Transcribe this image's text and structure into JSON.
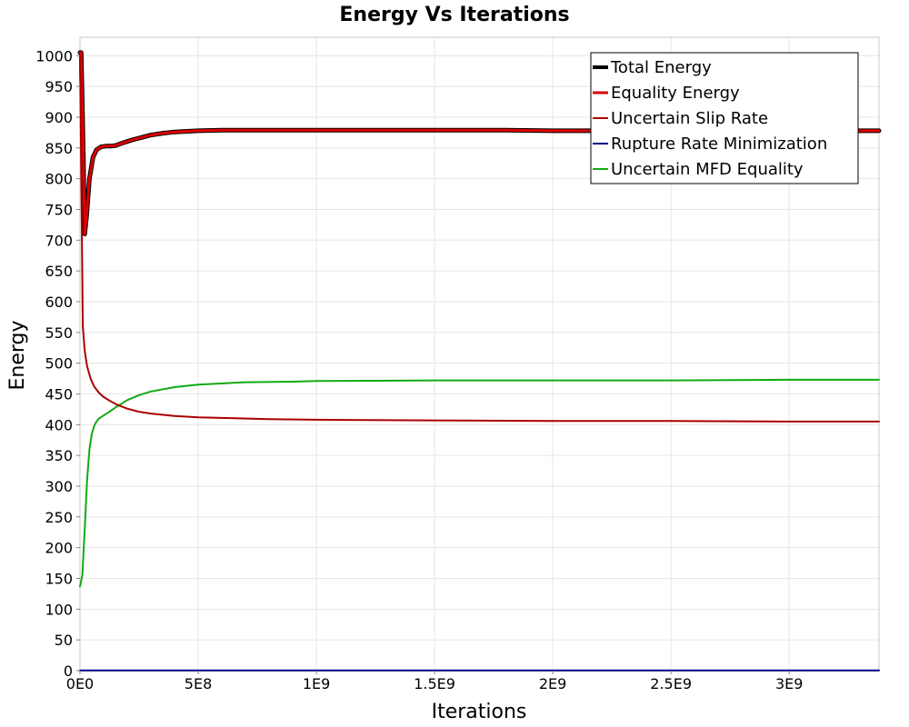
{
  "chart_data": {
    "type": "line",
    "title": "Energy Vs Iterations",
    "xlabel": "Iterations",
    "ylabel": "Energy",
    "xlim": [
      0,
      3380000000
    ],
    "ylim": [
      0,
      1030
    ],
    "x_ticks": [
      0,
      500000000,
      1000000000,
      1500000000,
      2000000000,
      2500000000,
      3000000000
    ],
    "x_tick_labels": [
      "0E0",
      "5E8",
      "1E9",
      "1.5E9",
      "2E9",
      "2.5E9",
      "3E9"
    ],
    "y_ticks": [
      0,
      50,
      100,
      150,
      200,
      250,
      300,
      350,
      400,
      450,
      500,
      550,
      600,
      650,
      700,
      750,
      800,
      850,
      900,
      950,
      1000
    ],
    "y_tick_labels": [
      "0",
      "50",
      "100",
      "150",
      "200",
      "250",
      "300",
      "350",
      "400",
      "450",
      "500",
      "550",
      "600",
      "650",
      "700",
      "750",
      "800",
      "850",
      "900",
      "950",
      "1000"
    ],
    "grid": true,
    "legend_position": "top-right",
    "series": [
      {
        "name": "Total Energy",
        "color": "#000000",
        "x": [
          0,
          5000000,
          12000000,
          20000000,
          28000000,
          40000000,
          55000000,
          70000000,
          90000000,
          110000000,
          130000000,
          150000000,
          180000000,
          220000000,
          260000000,
          300000000,
          350000000,
          400000000,
          500000000,
          600000000,
          700000000,
          800000000,
          900000000,
          1000000000,
          1200000000,
          1400000000,
          1600000000,
          1800000000,
          2000000000,
          2200000000,
          2400000000,
          2600000000,
          2800000000,
          3000000000,
          3200000000,
          3380000000
        ],
        "values": [
          1005,
          1005,
          880,
          710,
          740,
          800,
          835,
          847,
          852,
          853,
          853,
          854,
          858,
          863,
          867,
          871,
          874,
          876,
          878,
          879,
          879,
          879,
          879,
          879,
          879,
          879,
          879,
          879,
          878,
          878,
          878,
          878,
          878,
          878,
          878,
          878
        ]
      },
      {
        "name": "Equality Energy",
        "color": "#dd0000",
        "x": [
          0,
          5000000,
          12000000,
          20000000,
          28000000,
          40000000,
          55000000,
          70000000,
          90000000,
          110000000,
          130000000,
          150000000,
          180000000,
          220000000,
          260000000,
          300000000,
          350000000,
          400000000,
          500000000,
          600000000,
          700000000,
          800000000,
          900000000,
          1000000000,
          1200000000,
          1400000000,
          1600000000,
          1800000000,
          2000000000,
          2200000000,
          2400000000,
          2600000000,
          2800000000,
          3000000000,
          3200000000,
          3380000000
        ],
        "values": [
          1005,
          1005,
          880,
          710,
          740,
          800,
          835,
          847,
          852,
          853,
          853,
          854,
          858,
          863,
          867,
          871,
          874,
          876,
          878,
          879,
          879,
          879,
          879,
          879,
          879,
          879,
          879,
          879,
          878,
          878,
          878,
          878,
          878,
          878,
          878,
          878
        ]
      },
      {
        "name": "Uncertain Slip Rate",
        "color": "#aa0000",
        "x": [
          0,
          5000000,
          12000000,
          20000000,
          30000000,
          45000000,
          60000000,
          80000000,
          100000000,
          130000000,
          160000000,
          200000000,
          250000000,
          300000000,
          400000000,
          500000000,
          600000000,
          800000000,
          1000000000,
          1500000000,
          2000000000,
          2500000000,
          3000000000,
          3380000000
        ],
        "values": [
          1000,
          820,
          560,
          520,
          495,
          475,
          462,
          452,
          445,
          438,
          432,
          426,
          421,
          418,
          414,
          412,
          411,
          409,
          408,
          407,
          406,
          406,
          405,
          405
        ]
      },
      {
        "name": "Rupture Rate Minimization",
        "color": "#000088",
        "x": [
          0,
          3380000000
        ],
        "values": [
          0.5,
          0.5
        ]
      },
      {
        "name": "Uncertain MFD Equality",
        "color": "#11aa11",
        "x": [
          0,
          10000000,
          20000000,
          30000000,
          40000000,
          50000000,
          60000000,
          70000000,
          80000000,
          100000000,
          120000000,
          150000000,
          200000000,
          250000000,
          300000000,
          400000000,
          500000000,
          700000000,
          900000000,
          1000000000,
          1500000000,
          2000000000,
          2500000000,
          3000000000,
          3380000000
        ],
        "values": [
          137,
          155,
          230,
          310,
          360,
          385,
          398,
          405,
          410,
          415,
          420,
          428,
          440,
          448,
          454,
          461,
          465,
          469,
          470,
          471,
          472,
          472,
          472,
          473,
          473
        ]
      }
    ]
  }
}
